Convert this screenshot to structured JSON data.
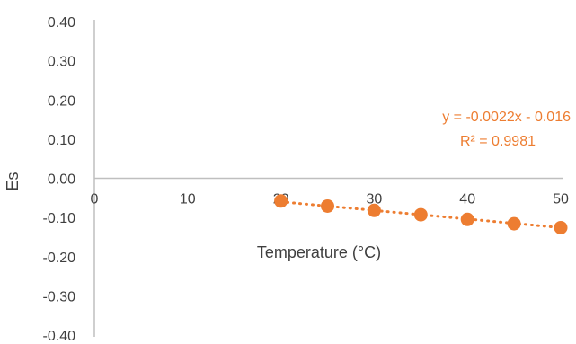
{
  "chart_data": {
    "type": "scatter",
    "title": "",
    "xlabel": "Temperature (°C)",
    "ylabel": "Es",
    "xlim": [
      0,
      50
    ],
    "ylim": [
      -0.4,
      0.4
    ],
    "x_ticks": [
      0,
      10,
      20,
      30,
      40,
      50
    ],
    "x_tick_labels": [
      "0",
      "10",
      "20",
      "30",
      "40",
      "50"
    ],
    "y_ticks": [
      0.4,
      0.3,
      0.2,
      0.1,
      0.0,
      -0.1,
      -0.2,
      -0.3,
      -0.4
    ],
    "y_tick_labels": [
      "0.40",
      "0.30",
      "0.20",
      "0.10",
      "0.00",
      "-0.10",
      "-0.20",
      "-0.30",
      "-0.40"
    ],
    "grid": false,
    "legend": "none",
    "series": [
      {
        "x": [
          20,
          25,
          30,
          35,
          40,
          45,
          50
        ],
        "y": [
          -0.058,
          -0.071,
          -0.082,
          -0.093,
          -0.105,
          -0.116,
          -0.126
        ],
        "color": "#ED7D31"
      }
    ],
    "trendline": {
      "type": "linear",
      "slope": -0.0022,
      "intercept": -0.016,
      "x_range": [
        20,
        50
      ],
      "style": "dotted",
      "color": "#ED7D31",
      "equation_label": "y = -0.0022x - 0.016",
      "r2_label": "R² = 0.9981"
    },
    "colors": {
      "axis": "#BFBFBF",
      "text": "#3F3F3F",
      "series": "#ED7D31"
    }
  }
}
